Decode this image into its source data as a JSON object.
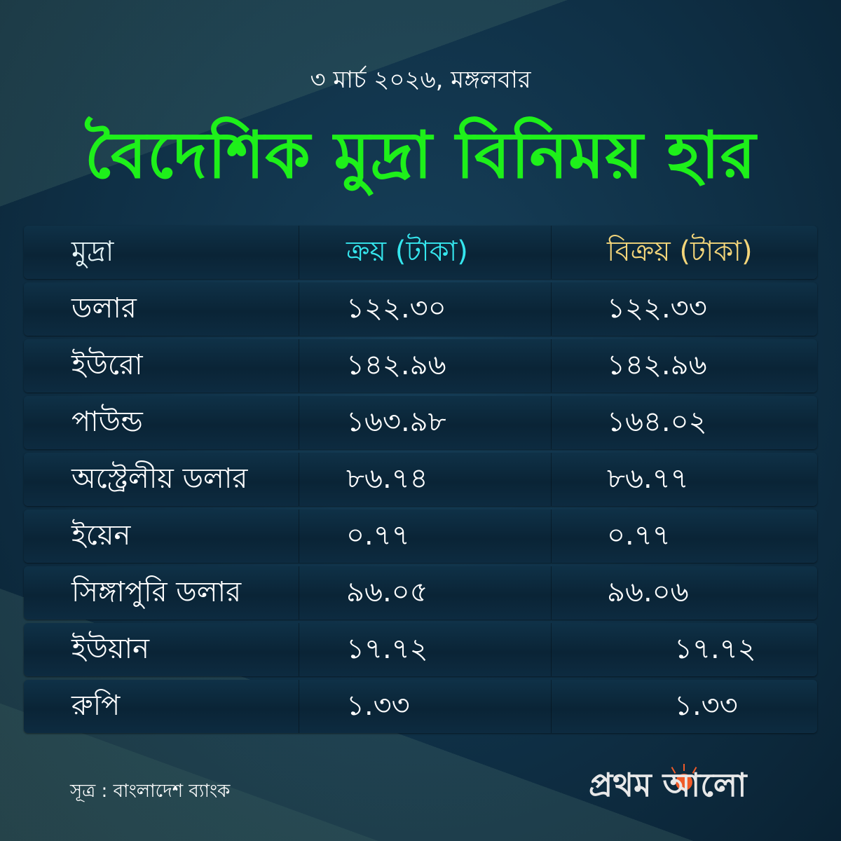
{
  "date": "৩ মার্চ ২০২৬, মঙ্গলবার",
  "title": "বৈদেশিক মুদ্রা বিনিময় হার",
  "colors": {
    "title": "#1ef01a",
    "buy_header": "#35e6ee",
    "sell_header": "#f3d57a",
    "background": "#0f3046"
  },
  "table": {
    "headers": [
      "মুদ্রা",
      "ক্রয় (টাকা)",
      "বিক্রয় (টাকা)"
    ],
    "rows": [
      {
        "currency": "ডলার",
        "buy": "১২২.৩০",
        "sell": "১২২.৩৩"
      },
      {
        "currency": "ইউরো",
        "buy": "১৪২.৯৬",
        "sell": "১৪২.৯৬"
      },
      {
        "currency": "পাউন্ড",
        "buy": "১৬৩.৯৮",
        "sell": "১৬৪.০২"
      },
      {
        "currency": "অস্ট্রেলীয় ডলার",
        "buy": "৮৬.৭৪",
        "sell": "৮৬.৭৭"
      },
      {
        "currency": "ইয়েন",
        "buy": "০.৭৭",
        "sell": "০.৭৭"
      },
      {
        "currency": "সিঙ্গাপুরি ডলার",
        "buy": "৯৬.০৫",
        "sell": "৯৬.০৬"
      },
      {
        "currency": "ইউয়ান",
        "buy": "১৭.৭২",
        "sell": "১৭.৭২"
      },
      {
        "currency": "রুপি",
        "buy": "১.৩৩",
        "sell": "১.৩৩"
      }
    ]
  },
  "source": "সূত্র : বাংলাদেশ ব্যাংক",
  "logo": {
    "text": "প্রথম আলো",
    "icon": "sun-icon"
  }
}
